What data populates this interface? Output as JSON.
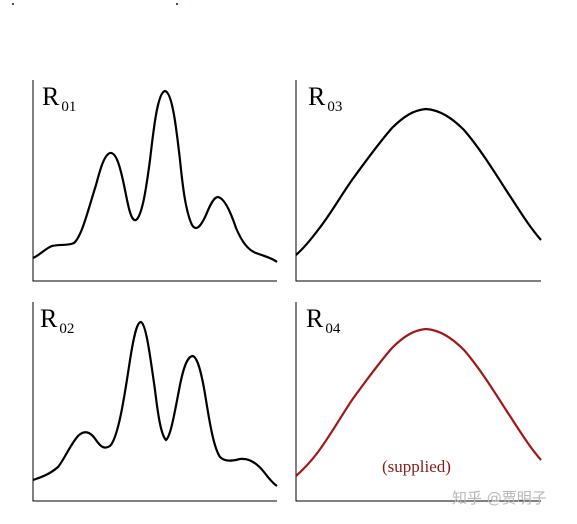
{
  "panels": [
    {
      "id": "r01",
      "label_main": "R",
      "label_sub": "01",
      "curve_color": "#000000"
    },
    {
      "id": "r03",
      "label_main": "R",
      "label_sub": "03",
      "curve_color": "#000000"
    },
    {
      "id": "r02",
      "label_main": "R",
      "label_sub": "02",
      "curve_color": "#000000"
    },
    {
      "id": "r04",
      "label_main": "R",
      "label_sub": "04",
      "curve_color": "#a01818",
      "note": "(supplied)"
    }
  ],
  "watermark": "知乎 @贾明子"
}
